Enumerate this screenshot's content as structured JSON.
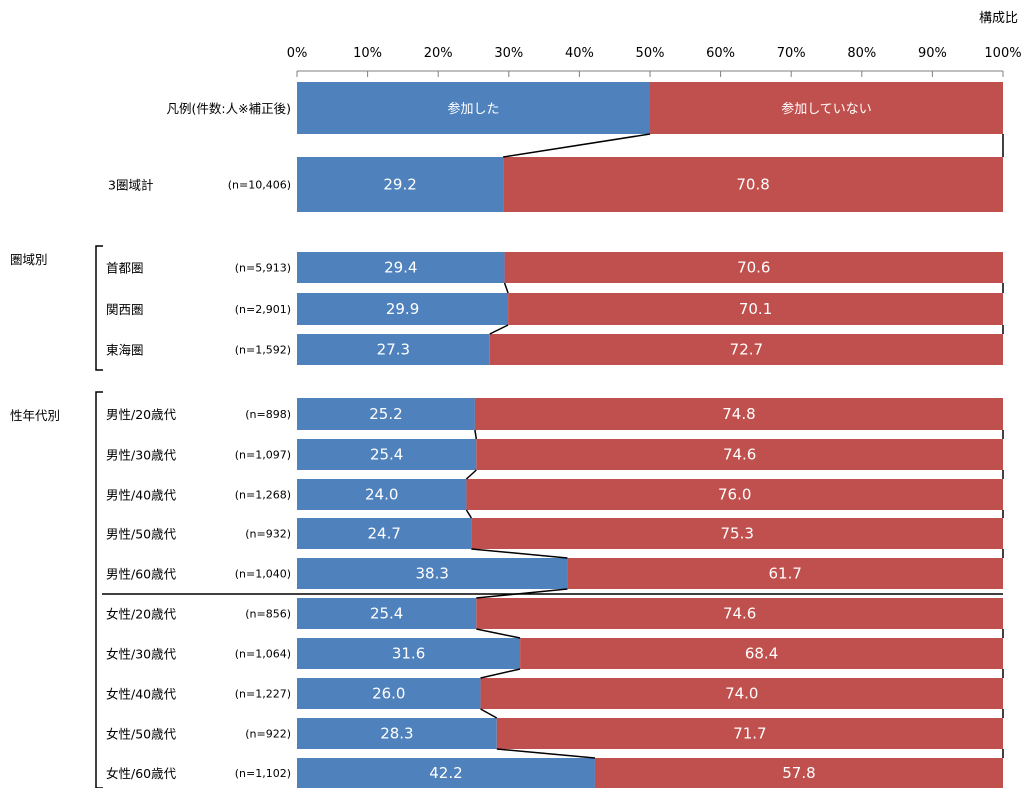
{
  "chart_data": {
    "type": "bar",
    "orientation": "horizontal",
    "stacked": "100%",
    "unit_label": "構成比",
    "x_ticks": [
      "0%",
      "10%",
      "20%",
      "30%",
      "40%",
      "50%",
      "60%",
      "70%",
      "80%",
      "90%",
      "100%"
    ],
    "xlim": [
      0,
      100
    ],
    "legend_row": {
      "label": "凡例(件数:人※補正後)",
      "series_labels": [
        "参加した",
        "参加していない"
      ]
    },
    "series": [
      {
        "name": "参加した",
        "color": "#4f81bd"
      },
      {
        "name": "参加していない",
        "color": "#c0504d"
      }
    ],
    "group_labels": [
      "圏域別",
      "性年代別"
    ],
    "rows": [
      {
        "label": "3圏域計",
        "n": "(n=10,406)",
        "values": [
          29.2,
          70.8
        ]
      },
      {
        "label": "首都圏",
        "n": "(n=5,913)",
        "values": [
          29.4,
          70.6
        ]
      },
      {
        "label": "関西圏",
        "n": "(n=2,901)",
        "values": [
          29.9,
          70.1
        ]
      },
      {
        "label": "東海圏",
        "n": "(n=1,592)",
        "values": [
          27.3,
          72.7
        ]
      },
      {
        "label": "男性/20歳代",
        "n": "(n=898)",
        "values": [
          25.2,
          74.8
        ]
      },
      {
        "label": "男性/30歳代",
        "n": "(n=1,097)",
        "values": [
          25.4,
          74.6
        ]
      },
      {
        "label": "男性/40歳代",
        "n": "(n=1,268)",
        "values": [
          24.0,
          76.0
        ]
      },
      {
        "label": "男性/50歳代",
        "n": "(n=932)",
        "values": [
          24.7,
          75.3
        ]
      },
      {
        "label": "男性/60歳代",
        "n": "(n=1,040)",
        "values": [
          38.3,
          61.7
        ]
      },
      {
        "label": "女性/20歳代",
        "n": "(n=856)",
        "values": [
          25.4,
          74.6
        ]
      },
      {
        "label": "女性/30歳代",
        "n": "(n=1,064)",
        "values": [
          31.6,
          68.4
        ]
      },
      {
        "label": "女性/40歳代",
        "n": "(n=1,227)",
        "values": [
          26.0,
          74.0
        ]
      },
      {
        "label": "女性/50歳代",
        "n": "(n=922)",
        "values": [
          28.3,
          71.7
        ]
      },
      {
        "label": "女性/60歳代",
        "n": "(n=1,102)",
        "values": [
          42.2,
          57.8
        ]
      }
    ]
  }
}
